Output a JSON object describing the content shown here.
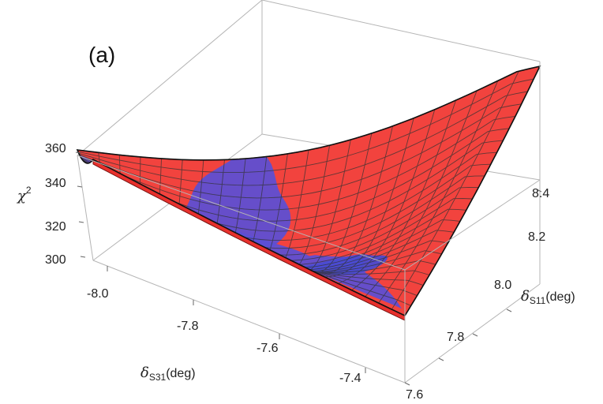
{
  "chart_data": {
    "type": "surface3d",
    "panel_label": "(a)",
    "x_axis": {
      "symbol": "δ",
      "subscript": "S31",
      "unit": "(deg)",
      "ticks": [
        "-8.0",
        "-7.8",
        "-7.6",
        "-7.4"
      ],
      "range": [
        -8.1,
        -7.3
      ]
    },
    "y_axis": {
      "symbol": "δ",
      "subscript": "S11",
      "unit": "(deg)",
      "ticks": [
        "7.6",
        "7.8",
        "8.0",
        "8.2",
        "8.4"
      ],
      "range": [
        7.6,
        8.45
      ]
    },
    "z_axis": {
      "symbol": "χ",
      "superscript": "2",
      "ticks": [
        "300",
        "320",
        "340",
        "360"
      ],
      "range": [
        296,
        360
      ]
    },
    "surfaces": [
      {
        "fill": "#f2433e",
        "mesh": "#333333"
      },
      {
        "fill": "#5a4fd6",
        "mesh": "#333333"
      }
    ],
    "boxed": true
  }
}
